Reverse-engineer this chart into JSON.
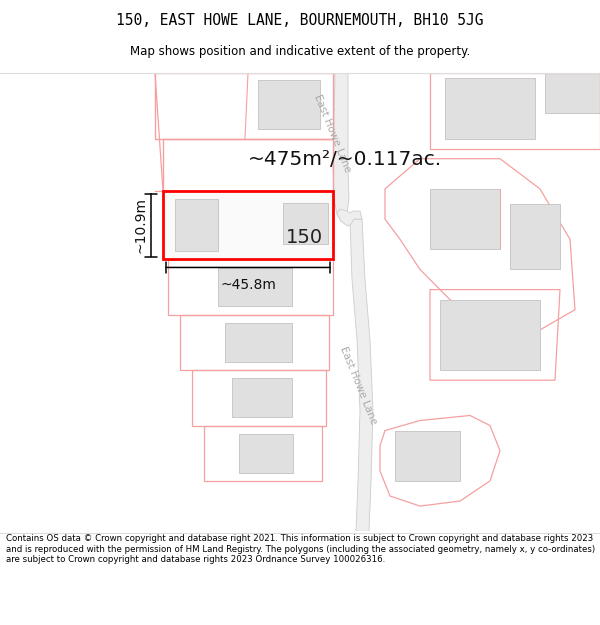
{
  "title": "150, EAST HOWE LANE, BOURNEMOUTH, BH10 5JG",
  "subtitle": "Map shows position and indicative extent of the property.",
  "footer": "Contains OS data © Crown copyright and database right 2021. This information is subject to Crown copyright and database rights 2023 and is reproduced with the permission of HM Land Registry. The polygons (including the associated geometry, namely x, y co-ordinates) are subject to Crown copyright and database rights 2023 Ordnance Survey 100026316.",
  "bg_color": "#ffffff",
  "plot_color": "#ff0000",
  "outline_color": "#f5a0a0",
  "building_fill": "#e0e0e0",
  "building_edge": "#c8c8c8",
  "road_fill": "#f0f0f0",
  "road_edge": "#c0c0c0",
  "label_area": "~475m²/~0.117ac.",
  "label_width": "~45.8m",
  "label_height": "~10.9m",
  "label_number": "150",
  "road_label": "East Howe Lane"
}
